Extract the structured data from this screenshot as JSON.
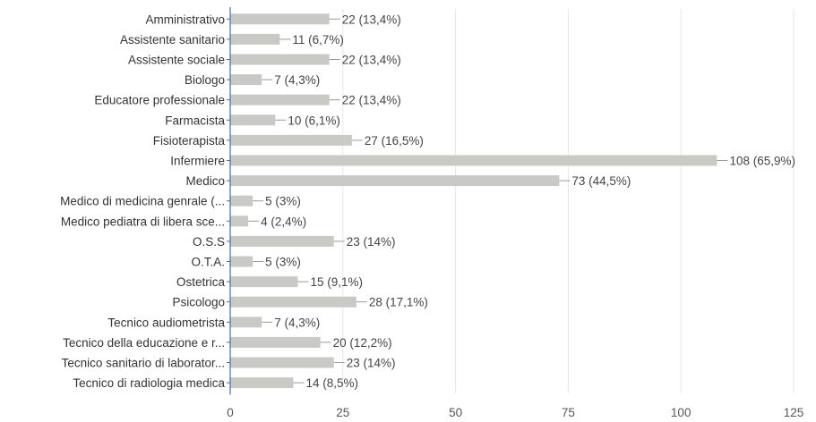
{
  "chart_data": {
    "type": "bar",
    "orientation": "horizontal",
    "title": "",
    "xlabel": "",
    "ylabel": "",
    "categories": [
      "Amministrativo",
      "Assistente sanitario",
      "Assistente sociale",
      "Biologo",
      "Educatore professionale",
      "Farmacista",
      "Fisioterapista",
      "Infermiere",
      "Medico",
      "Medico di medicina genrale (...",
      "Medico pediatra di libera sce...",
      "O.S.S",
      "O.T.A.",
      "Ostetrica",
      "Psicologo",
      "Tecnico audiometrista",
      "Tecnico della educazione e r...",
      "Tecnico sanitario di laborator...",
      "Tecnico di radiologia medica"
    ],
    "values": [
      22,
      11,
      22,
      7,
      22,
      10,
      27,
      108,
      73,
      5,
      4,
      23,
      5,
      15,
      28,
      7,
      20,
      23,
      14
    ],
    "data_labels": [
      "22 (13,4%)",
      "11 (6,7%)",
      "22 (13,4%)",
      "7 (4,3%)",
      "22 (13,4%)",
      "10 (6,1%)",
      "27 (16,5%)",
      "108 (65,9%)",
      "73 (44,5%)",
      "5 (3%)",
      "4 (2,4%)",
      "23 (14%)",
      "5 (3%)",
      "15 (9,1%)",
      "28 (17,1%)",
      "7 (4,3%)",
      "20 (12,2%)",
      "23 (14%)",
      "14 (8,5%)"
    ],
    "xlim": [
      0,
      125
    ],
    "xticks": [
      0,
      25,
      50,
      75,
      100,
      125
    ],
    "xtick_labels": [
      "0",
      "25",
      "50",
      "75",
      "100",
      "125"
    ],
    "grid": "vertical",
    "legend": "none",
    "colors": {
      "bar": "#c9c9c6",
      "axis": "#3f6db5",
      "grid": "#e6e6e6",
      "connector": "#9a9a9a"
    }
  }
}
